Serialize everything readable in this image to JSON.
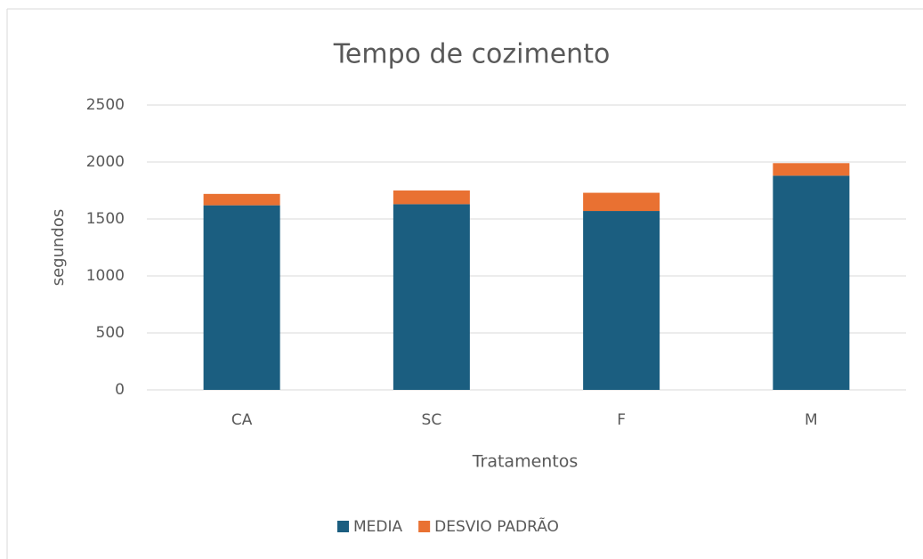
{
  "chart_data": {
    "type": "bar",
    "stacked": true,
    "title": "Tempo de cozimento",
    "x_label": "Tratamentos",
    "y_label": "segundos",
    "categories": [
      "CA",
      "SC",
      "F",
      "M"
    ],
    "series": [
      {
        "name": "MEDIA",
        "color": "#1b5e80",
        "values": [
          1620,
          1630,
          1570,
          1880
        ]
      },
      {
        "name": "DESVIO PADRÃO",
        "color": "#e97132",
        "values": [
          100,
          120,
          160,
          110
        ]
      }
    ],
    "ylim": [
      0,
      2500
    ],
    "yticks": [
      0,
      500,
      1000,
      1500,
      2000,
      2500
    ],
    "grid": true,
    "legend": "bottom"
  }
}
